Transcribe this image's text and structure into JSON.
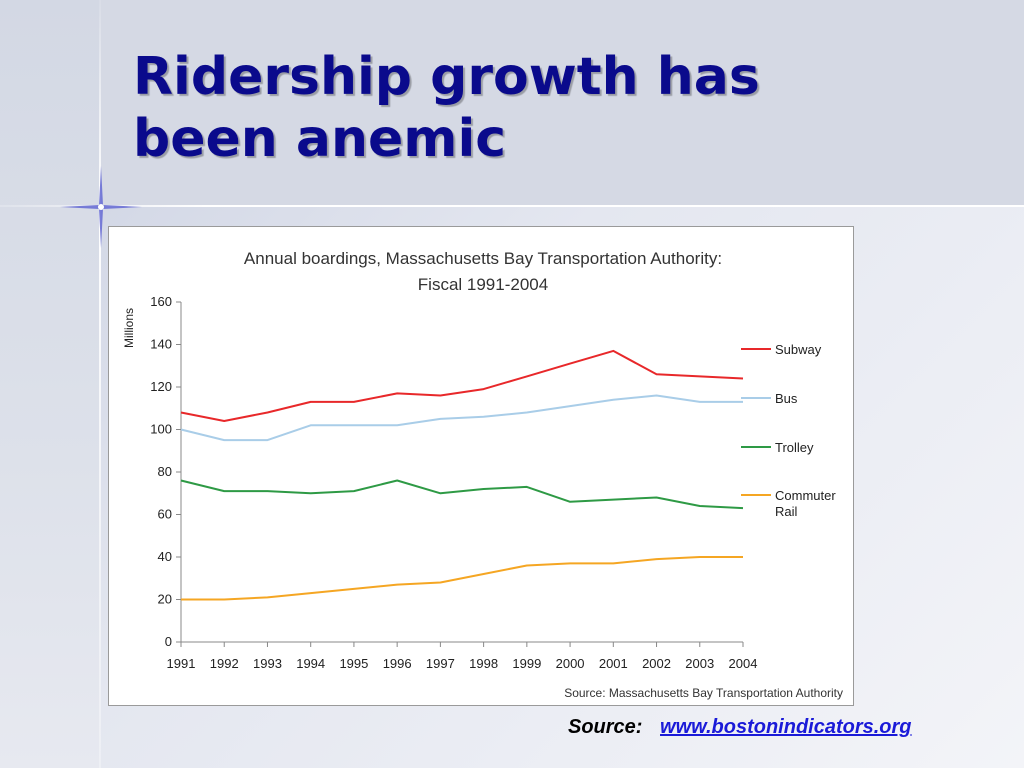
{
  "slide": {
    "title_lines": [
      "Ridership growth has",
      "been anemic"
    ],
    "source_label": "Source:",
    "source_link": "www.bostonindicators.org"
  },
  "colors": {
    "title": "#0a0a8c",
    "link": "#1a1ad8",
    "subway": "#e8282a",
    "bus": "#a9cde8",
    "trolley": "#2e9a45",
    "commuter_rail": "#f5a623"
  },
  "chart_data": {
    "type": "line",
    "title": "Annual boardings, Massachusetts Bay Transportation Authority:",
    "subtitle": "Fiscal 1991-2004",
    "ylabel": "Millions",
    "xlabel": "",
    "ylim": [
      0,
      160
    ],
    "yticks": [
      0,
      20,
      40,
      60,
      80,
      100,
      120,
      140,
      160
    ],
    "grid": false,
    "legend_position": "right",
    "source_note": "Source: Massachusetts Bay Transportation Authority",
    "x": [
      "1991",
      "1992",
      "1993",
      "1994",
      "1995",
      "1996",
      "1997",
      "1998",
      "1999",
      "2000",
      "2001",
      "2002",
      "2003",
      "2004"
    ],
    "series": [
      {
        "name": "Subway",
        "color": "#e8282a",
        "values": [
          108,
          104,
          108,
          113,
          113,
          117,
          116,
          119,
          125,
          131,
          137,
          126,
          125,
          124
        ]
      },
      {
        "name": "Bus",
        "color": "#a9cde8",
        "values": [
          100,
          95,
          95,
          102,
          102,
          102,
          105,
          106,
          108,
          111,
          114,
          116,
          113,
          113
        ]
      },
      {
        "name": "Trolley",
        "color": "#2e9a45",
        "values": [
          76,
          71,
          71,
          70,
          71,
          76,
          70,
          72,
          73,
          66,
          67,
          68,
          64,
          63
        ]
      },
      {
        "name": "Commuter Rail",
        "legend_lines": [
          "Commuter",
          "Rail"
        ],
        "color": "#f5a623",
        "values": [
          20,
          20,
          21,
          23,
          25,
          27,
          28,
          32,
          36,
          37,
          37,
          39,
          40,
          40
        ]
      }
    ]
  }
}
